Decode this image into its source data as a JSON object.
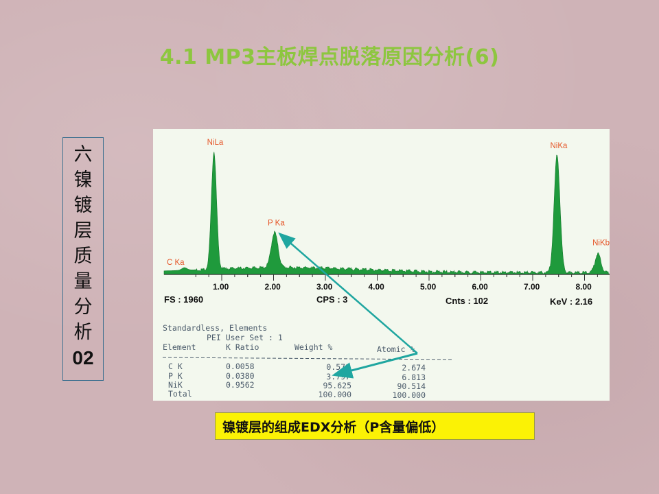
{
  "slide": {
    "title": "4.1 MP3主板焊点脱落原因分析(6)",
    "section_chars": [
      "六",
      "镍",
      "镀",
      "层",
      "质",
      "量",
      "分",
      "析"
    ],
    "section_number": "02",
    "caption": "镍镀层的组成EDX分析（P含量偏低）"
  },
  "chart_data": {
    "type": "line",
    "xlabel": "",
    "ylabel": "",
    "x_unit": "KeV",
    "xlim": [
      0.55,
      8.45
    ],
    "x_ticks": [
      "1.00",
      "2.00",
      "3.00",
      "4.00",
      "5.00",
      "6.00",
      "7.00",
      "8.00"
    ],
    "x_tick_values": [
      1.0,
      2.0,
      3.0,
      4.0,
      5.0,
      6.0,
      7.0,
      8.0
    ],
    "peaks": [
      {
        "label": "C Ka",
        "x": 0.28,
        "rel_height": 0.02
      },
      {
        "label": "NiLa",
        "x": 0.85,
        "rel_height": 0.93
      },
      {
        "label": "P Ka",
        "x": 2.02,
        "rel_height": 0.28
      },
      {
        "label": "NiKa",
        "x": 7.47,
        "rel_height": 0.93
      },
      {
        "label": "NiKb",
        "x": 8.26,
        "rel_height": 0.15
      }
    ],
    "info": {
      "fs": "FS : 1960",
      "cps": "CPS : 3",
      "cnts": "Cnts : 102",
      "kev": "KeV : 2.16"
    },
    "table": {
      "heading": "Standardless, Elements",
      "subheading": "PEI User Set : 1",
      "columns": [
        "Element",
        "K Ratio",
        "Weight %",
        "Atomic %"
      ],
      "rows": [
        [
          "C K",
          "0.0058",
          "0.578",
          "2.674"
        ],
        [
          "P K",
          "0.0380",
          "3.797",
          "6.813"
        ],
        [
          "NiK",
          "0.9562",
          "95.625",
          "90.514"
        ],
        [
          "Total",
          "",
          "100.000",
          "100.000"
        ]
      ]
    },
    "colors": {
      "fill": "#1f9a3c",
      "peak_label": "#e5572a",
      "arrow": "#1fa6a0",
      "axis": "#333333",
      "table_text": "#4a5a6a"
    }
  }
}
